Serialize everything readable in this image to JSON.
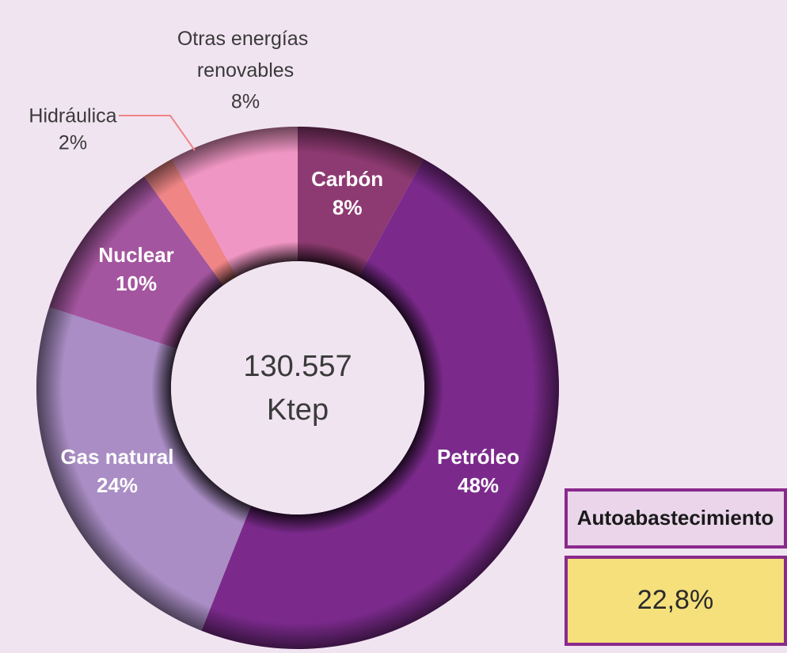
{
  "chart_data": {
    "type": "donut",
    "categories": [
      "Carbón",
      "Petróleo",
      "Gas natural",
      "Nuclear",
      "Hidráulica",
      "Otras energías renovables"
    ],
    "values": [
      8,
      48,
      24,
      10,
      2,
      8
    ],
    "value_labels": [
      "8%",
      "48%",
      "24%",
      "10%",
      "2%",
      "8%"
    ],
    "colors": [
      "#8e3a72",
      "#7b2a8c",
      "#a98dc4",
      "#a4559f",
      "#ef8585",
      "#f096c4"
    ],
    "center_value": "130.557",
    "center_unit": "Ktep",
    "box_label": "Autoabastecimiento",
    "box_value": "22,8%"
  }
}
